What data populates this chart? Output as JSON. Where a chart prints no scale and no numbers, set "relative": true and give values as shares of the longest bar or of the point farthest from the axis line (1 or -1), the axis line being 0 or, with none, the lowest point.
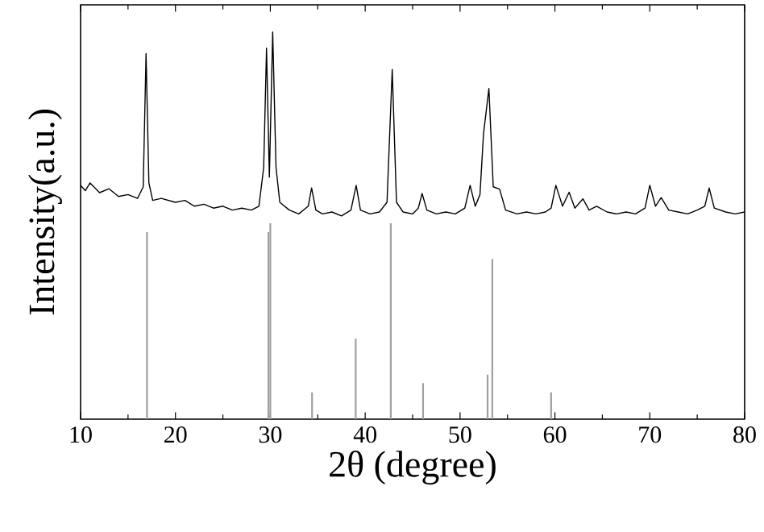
{
  "chart_data": {
    "type": "line",
    "xlabel": "2θ (degree)",
    "ylabel": "Intensity(a.u.)",
    "relative": true,
    "xlim": [
      10,
      80
    ],
    "xticks": [
      10,
      20,
      30,
      40,
      50,
      60,
      70,
      80
    ],
    "marker": "none",
    "line_style": "solid",
    "series": [
      {
        "color": "#000000",
        "x": [
          10,
          10.5,
          11,
          12,
          13,
          14,
          15,
          16,
          16.6,
          16.9,
          17.2,
          17.6,
          18.5,
          20,
          21,
          22,
          23,
          24,
          25,
          26,
          27,
          28,
          28.8,
          29.3,
          29.6,
          29.9,
          30.25,
          30.6,
          31,
          32,
          33,
          34,
          34.35,
          34.8,
          35.5,
          36.5,
          37.5,
          38.5,
          39.05,
          39.5,
          40.5,
          41.5,
          42.3,
          42.85,
          43.3,
          44,
          45,
          45.6,
          46,
          46.5,
          47.5,
          48.5,
          49.5,
          50.5,
          51.06,
          51.6,
          52.1,
          52.47,
          53.04,
          53.5,
          54.17,
          54.8,
          56,
          57,
          58,
          59,
          59.6,
          60.1,
          60.8,
          61.5,
          62.1,
          62.95,
          63.6,
          64.4,
          65.5,
          66.5,
          67.5,
          68.5,
          69.5,
          70,
          70.6,
          71.2,
          72,
          73,
          74,
          75,
          75.8,
          76.26,
          76.8,
          78,
          79,
          80
        ],
        "values": [
          0.604,
          0.59,
          0.61,
          0.585,
          0.595,
          0.575,
          0.58,
          0.57,
          0.6,
          0.944,
          0.61,
          0.565,
          0.57,
          0.56,
          0.565,
          0.55,
          0.555,
          0.545,
          0.55,
          0.54,
          0.545,
          0.54,
          0.55,
          0.65,
          0.958,
          0.625,
          1.0,
          0.65,
          0.56,
          0.54,
          0.53,
          0.55,
          0.597,
          0.54,
          0.53,
          0.535,
          0.525,
          0.54,
          0.604,
          0.54,
          0.53,
          0.535,
          0.56,
          0.903,
          0.56,
          0.535,
          0.53,
          0.545,
          0.583,
          0.54,
          0.53,
          0.535,
          0.53,
          0.545,
          0.604,
          0.55,
          0.58,
          0.736,
          0.854,
          0.6,
          0.594,
          0.54,
          0.53,
          0.535,
          0.53,
          0.535,
          0.545,
          0.604,
          0.55,
          0.586,
          0.545,
          0.569,
          0.54,
          0.55,
          0.535,
          0.53,
          0.535,
          0.53,
          0.545,
          0.604,
          0.55,
          0.572,
          0.54,
          0.535,
          0.53,
          0.54,
          0.55,
          0.597,
          0.545,
          0.535,
          0.53,
          0.535
        ]
      },
      {
        "type": "bar",
        "color": "#a0a0a0",
        "x": [
          17,
          29.8,
          30,
          34.4,
          39,
          42.7,
          46.1,
          52.9,
          53.4,
          59.6
        ],
        "values": [
          0.483,
          0.483,
          0.506,
          0.069,
          0.208,
          0.506,
          0.093,
          0.115,
          0.414,
          0.069
        ]
      }
    ]
  }
}
